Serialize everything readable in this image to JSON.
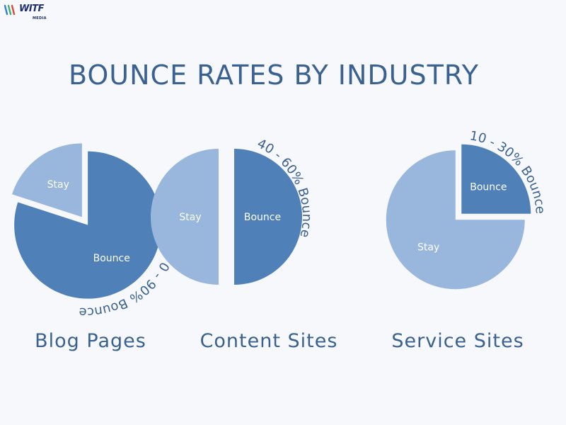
{
  "logo": {
    "text": "WITF",
    "subtext": "MEDIA"
  },
  "chart_data": [
    {
      "type": "pie",
      "title": "BOUNCE RATES BY INDUSTRY",
      "label": "Blog Pages",
      "slices": [
        {
          "label": "Bounce",
          "value": 80
        },
        {
          "label": "Stay",
          "value": 20
        }
      ],
      "annotation": "70 - 90% Bounce"
    },
    {
      "type": "pie",
      "label": "Content Sites",
      "slices": [
        {
          "label": "Bounce",
          "value": 50
        },
        {
          "label": "Stay",
          "value": 50
        }
      ],
      "annotation": "40 - 60% Bounce"
    },
    {
      "type": "pie",
      "label": "Service Sites",
      "slices": [
        {
          "label": "Bounce",
          "value": 25
        },
        {
          "label": "Stay",
          "value": 75
        }
      ],
      "annotation": "10 - 30% Bounce"
    }
  ],
  "colors": {
    "bounce": "#4f81b8",
    "stay": "#99b7dd",
    "text": "#3a6190",
    "slice_label": "#ffffff"
  }
}
